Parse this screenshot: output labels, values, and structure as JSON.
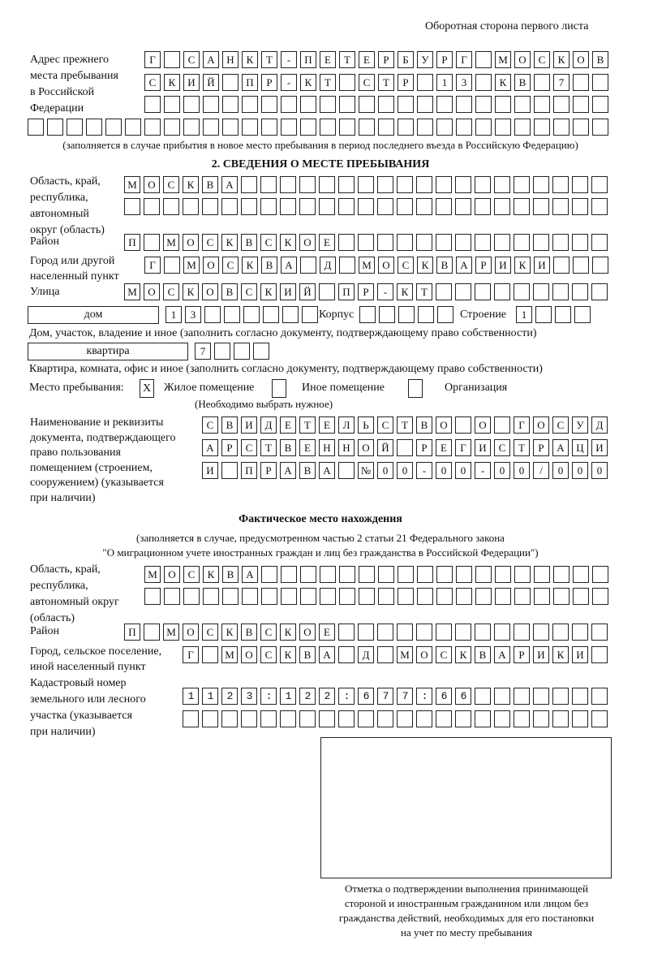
{
  "header": {
    "page_side": "Оборотная сторона первого листа"
  },
  "previous_address": {
    "label": [
      "Адрес прежнего",
      "места пребывания",
      "в Российской",
      "Федерации"
    ],
    "rows": [
      "Г САНКТ-ПЕТЕРБУРГ МОСКОВ",
      "СКИЙ ПР-КТ СТР 13 КВ 7",
      "",
      ""
    ],
    "note": "(заполняется в случае прибытия в новое место пребывания в период последнего въезда в Российскую Федерацию)"
  },
  "section2": {
    "title": "2. СВЕДЕНИЯ О МЕСТЕ ПРЕБЫВАНИЯ",
    "region_label": [
      "Область, край,",
      "республика,",
      "автономный",
      "округ (область)"
    ],
    "region_rows": [
      "МОСКВА",
      ""
    ],
    "district_label": "Район",
    "district": "П МОСКВСКОЕ",
    "city_label": [
      "Город или другой",
      "населенный пункт"
    ],
    "city": "Г МОСКВА Д МОСКВАРИКИ",
    "street_label": "Улица",
    "street": "МОСКОВСКИЙ ПР-КТ",
    "house_type": "дом",
    "house_number": "13",
    "korpus_label": "Корпус",
    "korpus": "",
    "building_label": "Строение",
    "building": "1",
    "house_note": "Дом, участок, владение и иное (заполнить согласно документу, подтверждающему право собственности)",
    "apartment_type": "квартира",
    "apartment_number": "7",
    "apartment_note": "Квартира, комната, офис и иное (заполнить согласно документу, подтверждающему право собственности)",
    "stay_place_label": "Место пребывания:",
    "stay_options": [
      {
        "label": "Жилое помещение",
        "mark": "X",
        "checked": true
      },
      {
        "label": "Иное помещение",
        "mark": "",
        "checked": false
      },
      {
        "label": "Организация",
        "mark": "",
        "checked": false
      }
    ],
    "stay_note": "(Необходимо выбрать нужное)",
    "document_label": [
      "Наименование и реквизиты",
      "документа, подтверждающего",
      "право пользования",
      "помещением (строением,",
      "сооружением) (указывается",
      "при наличии)"
    ],
    "document_rows": [
      "СВИДЕТЕЛЬСТВО О ГОСУД",
      "АРСТВЕННОЙ РЕГИСТРАЦИ",
      "И ПРАВА №00-00-00/000"
    ]
  },
  "actual": {
    "title": "Фактическое место нахождения",
    "note": [
      "(заполняется в случае, предусмотренном частью 2 статьи 21 Федерального закона",
      "\"О миграционном учете иностранных граждан и лиц без гражданства в Российской Федерации\")"
    ],
    "region_label": [
      "Область, край,",
      "республика,",
      "автономный округ",
      "(область)"
    ],
    "region_rows": [
      "МОСКВА",
      ""
    ],
    "district_label": "Район",
    "district": "П МОСКВСКОЕ",
    "city_label": [
      "Город, сельское поселение,",
      "иной населенный пункт"
    ],
    "city": "Г МОСКВА Д МОСКВАРИКИ",
    "cadastral_label": [
      "Кадастровый номер",
      "земельного или лесного",
      "участка (указывается",
      "при наличии)"
    ],
    "cadastral_rows": [
      "1123:122:677:66",
      ""
    ]
  },
  "confirmation": {
    "caption": [
      "Отметка о подтверждении выполнения принимающей",
      "стороной и иностранным гражданином или лицом без",
      "гражданства действий, необходимых для его постановки",
      "на учет по месту пребывания"
    ]
  }
}
